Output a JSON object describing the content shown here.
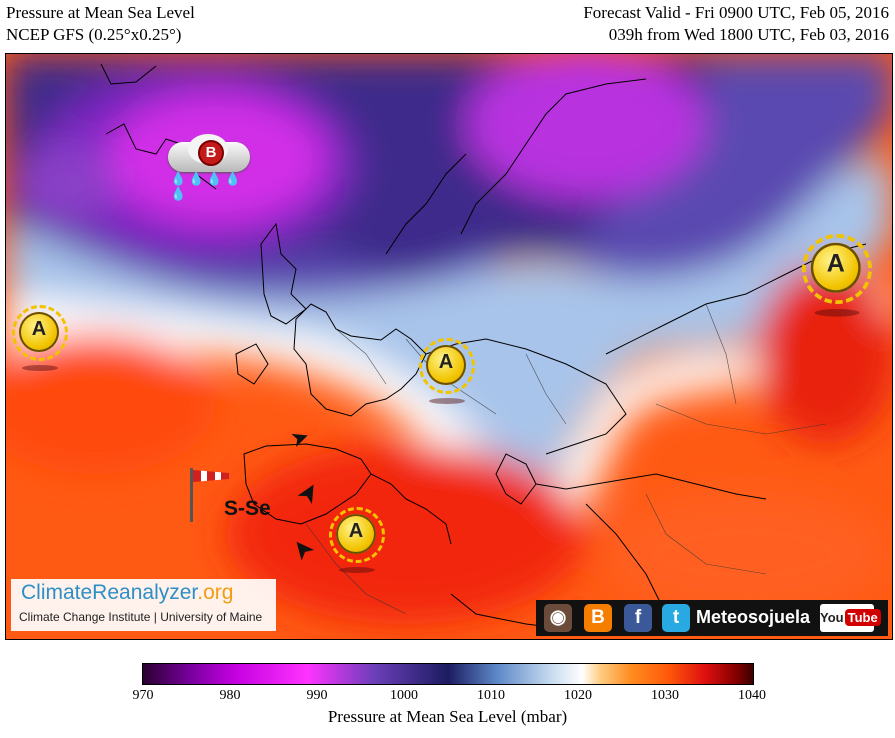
{
  "header": {
    "title_left": "Pressure at Mean Sea Level",
    "model_left": "NCEP GFS (0.25°x0.25°)",
    "valid_right": "Forecast Valid - Fri 0900 UTC, Feb 05, 2016",
    "run_right": "039h from Wed 1800 UTC, Feb 03, 2016"
  },
  "map": {
    "high_symbol_label": "A",
    "low_symbol_label": "B",
    "wind_label": "S-Se",
    "symbols": [
      "high-pressure-icon",
      "low-pressure-rain-icon",
      "windsock-icon",
      "wind-arrow-icon"
    ]
  },
  "branding": {
    "site_name_main": "ClimateReanalyzer",
    "site_name_tld": ".org",
    "site_subtitle": "Climate Change Institute | University of Maine",
    "social_name": "Meteosojuela",
    "youtube_you": "You",
    "youtube_tube": "Tube",
    "social_icons": [
      "instagram-icon",
      "blogger-icon",
      "facebook-icon",
      "twitter-icon",
      "youtube-icon"
    ]
  },
  "colorbar": {
    "ticks": [
      "970",
      "980",
      "990",
      "1000",
      "1010",
      "1020",
      "1030",
      "1040"
    ],
    "label": "Pressure at Mean Sea Level (mbar)",
    "range": [
      970,
      1040
    ],
    "colors": [
      "#2a0030",
      "#c400e0",
      "#ff33ff",
      "#1c1c60",
      "#ffffff",
      "#ff8c20",
      "#e01010",
      "#3a0000"
    ]
  }
}
